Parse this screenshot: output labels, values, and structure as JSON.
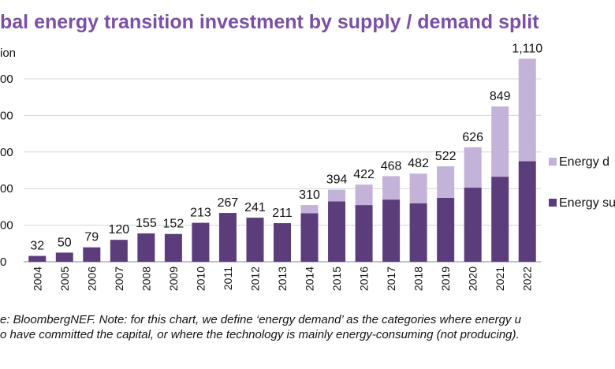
{
  "chart_data": {
    "type": "bar",
    "stacked": true,
    "title": "bal energy transition investment by supply / demand split",
    "ylabel_unit": "ion",
    "ylim": [
      0,
      1200
    ],
    "yticks": [
      0,
      200,
      400,
      600,
      800,
      1000
    ],
    "ytick_labels": [
      "0",
      "00",
      "00",
      "00",
      "00",
      "00"
    ],
    "categories": [
      "2004",
      "2005",
      "2006",
      "2007",
      "2008",
      "2009",
      "2010",
      "2011",
      "2012",
      "2013",
      "2014",
      "2015",
      "2016",
      "2017",
      "2018",
      "2019",
      "2020",
      "2021",
      "2022"
    ],
    "totals": [
      32,
      50,
      79,
      120,
      155,
      152,
      213,
      267,
      241,
      211,
      310,
      394,
      422,
      468,
      482,
      522,
      626,
      849,
      1110
    ],
    "total_labels": [
      "32",
      "50",
      "79",
      "120",
      "155",
      "152",
      "213",
      "267",
      "241",
      "211",
      "310",
      "394",
      "422",
      "468",
      "482",
      "522",
      "626",
      "849",
      "1,110"
    ],
    "series": [
      {
        "name": "Energy su",
        "color": "#5b3d7c",
        "values": [
          32,
          50,
          79,
          120,
          155,
          152,
          213,
          267,
          241,
          211,
          265,
          330,
          310,
          340,
          320,
          350,
          405,
          465,
          550
        ]
      },
      {
        "name": "Energy d",
        "color": "#c3b3d8",
        "values": [
          0,
          0,
          0,
          0,
          0,
          0,
          0,
          0,
          0,
          0,
          45,
          64,
          112,
          128,
          162,
          172,
          221,
          384,
          560
        ]
      }
    ],
    "legend_position": "right",
    "grid": true
  },
  "source_lines": [
    "e: BloombergNEF. Note: for this chart, we define ‘energy demand’ as the categories where energy u",
    "o have committed the capital, or where the technology is mainly energy-consuming (not producing)."
  ]
}
